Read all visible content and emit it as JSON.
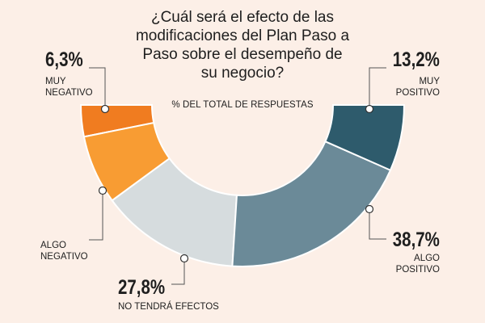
{
  "chart_data": {
    "type": "pie",
    "title": "¿Cuál será el efecto de las modificaciones del Plan Paso a Paso sobre el desempeño de su negocio?",
    "subtitle": "% DEL TOTAL DE RESPUESTAS",
    "slices": [
      {
        "label_line1": "MUY",
        "label_line2": "NEGATIVO",
        "value": 6.3,
        "display": "6,3%",
        "color": "#f07c20"
      },
      {
        "label_line1": "ALGO",
        "label_line2": "NEGATIVO",
        "value": 13.8,
        "display": "",
        "color": "#f89c33"
      },
      {
        "label_line1": "NO TENDRÁ EFECTOS",
        "label_line2": "",
        "value": 27.8,
        "display": "27,8%",
        "color": "#d6dcde"
      },
      {
        "label_line1": "ALGO",
        "label_line2": "POSITIVO",
        "value": 38.7,
        "display": "38,7%",
        "color": "#6b8a98"
      },
      {
        "label_line1": "MUY",
        "label_line2": "POSITIVO",
        "value": 13.2,
        "display": "13,2%",
        "color": "#2e5b6c"
      }
    ]
  },
  "labels": {
    "muy_negativo_pct": "6,3%",
    "muy_negativo_line1": "MUY",
    "muy_negativo_line2": "NEGATIVO",
    "algo_negativo_line1": "ALGO",
    "algo_negativo_line2": "NEGATIVO",
    "no_efectos_pct": "27,8%",
    "no_efectos_label": "NO TENDRÁ EFECTOS",
    "algo_positivo_pct": "38,7%",
    "algo_positivo_line1": "ALGO",
    "algo_positivo_line2": "POSITIVO",
    "muy_positivo_pct": "13,2%",
    "muy_positivo_line1": "MUY",
    "muy_positivo_line2": "POSITIVO"
  },
  "title_lines": [
    "¿Cuál será el efecto de las",
    "modificaciones del Plan Paso a",
    "Paso sobre el desempeño de",
    "su negocio?"
  ],
  "colors": {
    "background": "#fcefe7",
    "leader_line": "#555555"
  }
}
